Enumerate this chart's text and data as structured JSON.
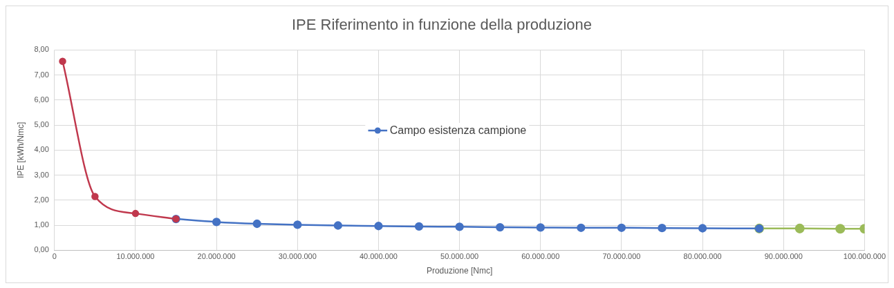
{
  "chart_data": {
    "type": "line",
    "title": "IPE Riferimento in funzione della produzione",
    "xlabel": "Produzione [Nmc]",
    "ylabel": "IPE [kWh/Nmc]",
    "xlim": [
      0,
      100000000
    ],
    "xticks": [
      0,
      {
        "value": 10000000,
        "label": "10.000.000"
      },
      {
        "value": 20000000,
        "label": "20.000.000"
      },
      {
        "value": 30000000,
        "label": "30.000.000"
      },
      {
        "value": 40000000,
        "label": "40.000.000"
      },
      {
        "value": 50000000,
        "label": "50.000.000"
      },
      {
        "value": 60000000,
        "label": "60.000.000"
      },
      {
        "value": 70000000,
        "label": "70.000.000"
      },
      {
        "value": 80000000,
        "label": "80.000.000"
      },
      {
        "value": 90000000,
        "label": "90.000.000"
      },
      {
        "value": 100000000,
        "label": "100.000.000"
      }
    ],
    "ylim": [
      0,
      8
    ],
    "yticks": [
      {
        "value": 0,
        "label": "0,00"
      },
      {
        "value": 1,
        "label": "1,00"
      },
      {
        "value": 2,
        "label": "2,00"
      },
      {
        "value": 3,
        "label": "3,00"
      },
      {
        "value": 4,
        "label": "4,00"
      },
      {
        "value": 5,
        "label": "5,00"
      },
      {
        "value": 6,
        "label": "6,00"
      },
      {
        "value": 7,
        "label": "7,00"
      },
      {
        "value": 8,
        "label": "8,00"
      }
    ],
    "grid": true,
    "marker": "circle",
    "legend": "center",
    "series": [
      {
        "color": "#c0384d",
        "x": [
          1000000,
          5000000,
          10000000,
          15000000
        ],
        "values": [
          7.55,
          2.15,
          1.47,
          1.25
        ]
      },
      {
        "name": "Campo esistenza campione",
        "color": "#4472c4",
        "x": [
          15000000,
          20000000,
          25000000,
          30000000,
          35000000,
          40000000,
          45000000,
          50000000,
          55000000,
          60000000,
          65000000,
          70000000,
          75000000,
          80000000,
          87000000
        ],
        "values": [
          1.25,
          1.13,
          1.06,
          1.02,
          0.99,
          0.97,
          0.95,
          0.94,
          0.92,
          0.91,
          0.9,
          0.9,
          0.89,
          0.88,
          0.87
        ]
      },
      {
        "color": "#9bbb59",
        "x": [
          87000000,
          92000000,
          97000000,
          100000000
        ],
        "values": [
          0.87,
          0.87,
          0.86,
          0.86
        ]
      }
    ]
  }
}
